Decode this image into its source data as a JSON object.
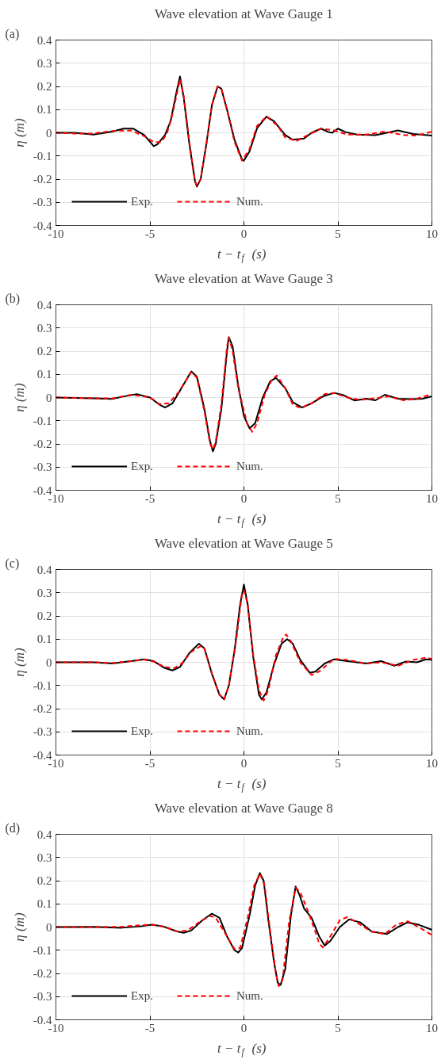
{
  "chart_data": [
    {
      "type": "line",
      "title": "Wave elevation at Wave Gauge 1",
      "xlabel": "t − t$_{f}$ (s)",
      "ylabel": "η (m)",
      "annotations": [
        "(a)"
      ],
      "xlim": [
        -10,
        10
      ],
      "xticks": [
        -10,
        -5,
        0,
        5,
        10
      ],
      "ylim": [
        -0.4,
        0.4
      ],
      "yticks": [
        -0.4,
        -0.3,
        -0.2,
        -0.1,
        0,
        0.1,
        0.2,
        0.3,
        0.4
      ],
      "grid": true,
      "legend": "bottom left",
      "series": [
        {
          "name": "Exp.",
          "color": "#000000",
          "line_style": "solid",
          "x": [
            -10,
            -9,
            -8,
            -7,
            -6.4,
            -5.9,
            -5.3,
            -4.8,
            -4.6,
            -4.2,
            -3.9,
            -3.6,
            -3.4,
            -3.2,
            -2.9,
            -2.6,
            -2.5,
            -2.3,
            -2.0,
            -1.7,
            -1.4,
            -1.2,
            -0.9,
            -0.5,
            -0.1,
            0,
            0.3,
            0.7,
            1.2,
            1.6,
            2.2,
            2.6,
            3.2,
            3.6,
            4.1,
            4.5,
            4.7,
            5.0,
            5.4,
            6,
            7,
            8.2,
            9,
            10
          ],
          "values": [
            0,
            0,
            -0.008,
            0.005,
            0.018,
            0.018,
            -0.01,
            -0.058,
            -0.05,
            -0.01,
            0.05,
            0.17,
            0.243,
            0.15,
            -0.05,
            -0.21,
            -0.232,
            -0.2,
            -0.05,
            0.12,
            0.2,
            0.19,
            0.1,
            -0.03,
            -0.115,
            -0.12,
            -0.08,
            0.02,
            0.07,
            0.05,
            -0.01,
            -0.03,
            -0.025,
            0,
            0.018,
            0.003,
            0,
            0.018,
            0.003,
            -0.008,
            -0.01,
            0.01,
            -0.005,
            -0.012
          ]
        },
        {
          "name": "Num.",
          "color": "#ff0000",
          "line_style": "dashed",
          "x": [
            -10,
            -9,
            -8,
            -7,
            -6,
            -5.3,
            -4.8,
            -4.4,
            -4.1,
            -3.8,
            -3.4,
            -3.2,
            -2.9,
            -2.6,
            -2.5,
            -2.3,
            -2.0,
            -1.7,
            -1.4,
            -1.2,
            -0.9,
            -0.5,
            -0.1,
            0.3,
            0.7,
            1.2,
            1.8,
            2.2,
            2.8,
            3.4,
            4.1,
            4.8,
            5.5,
            6.5,
            7.5,
            8.5,
            9.2,
            10
          ],
          "values": [
            0,
            -0.003,
            -0.003,
            0.008,
            0.01,
            -0.015,
            -0.04,
            -0.04,
            -0.005,
            0.08,
            0.23,
            0.16,
            -0.04,
            -0.21,
            -0.228,
            -0.2,
            -0.05,
            0.12,
            0.2,
            0.19,
            0.1,
            -0.04,
            -0.12,
            -0.07,
            0.03,
            0.07,
            0.03,
            -0.02,
            -0.035,
            -0.01,
            0.018,
            0.01,
            -0.008,
            -0.008,
            0.005,
            -0.01,
            -0.012,
            0.005
          ]
        }
      ]
    },
    {
      "type": "line",
      "title": "Wave elevation at Wave Gauge 3",
      "xlabel": "t − t$_{f}$ (s)",
      "ylabel": "η (m)",
      "annotations": [
        "(b)"
      ],
      "xlim": [
        -10,
        10
      ],
      "xticks": [
        -10,
        -5,
        0,
        5,
        10
      ],
      "ylim": [
        -0.4,
        0.4
      ],
      "yticks": [
        -0.4,
        -0.3,
        -0.2,
        -0.1,
        0,
        0.1,
        0.2,
        0.3,
        0.4
      ],
      "grid": true,
      "legend": "bottom left",
      "series": [
        {
          "name": "Exp.",
          "color": "#000000",
          "line_style": "solid",
          "x": [
            -10,
            -8,
            -7,
            -6.5,
            -5.7,
            -5,
            -4.5,
            -4.2,
            -3.8,
            -3.4,
            -2.8,
            -2.5,
            -2.1,
            -1.8,
            -1.65,
            -1.5,
            -1.2,
            -0.9,
            -0.8,
            -0.6,
            -0.3,
            0,
            0.3,
            0.6,
            1,
            1.4,
            1.7,
            2.2,
            2.6,
            3.1,
            3.6,
            4.2,
            4.8,
            5.3,
            5.9,
            6.5,
            7,
            7.5,
            8.2,
            9,
            9.5,
            10
          ],
          "values": [
            0,
            -0.003,
            -0.006,
            0.003,
            0.015,
            0,
            -0.03,
            -0.043,
            -0.025,
            0.03,
            0.113,
            0.09,
            -0.05,
            -0.19,
            -0.232,
            -0.2,
            -0.05,
            0.2,
            0.26,
            0.22,
            0.05,
            -0.08,
            -0.133,
            -0.11,
            0,
            0.07,
            0.085,
            0.04,
            -0.02,
            -0.043,
            -0.025,
            0.005,
            0.02,
            0.01,
            -0.013,
            -0.005,
            -0.012,
            0.012,
            -0.005,
            -0.007,
            -0.005,
            0.005
          ]
        },
        {
          "name": "Num.",
          "color": "#ff0000",
          "line_style": "dashed",
          "x": [
            -10,
            -8,
            -7,
            -6,
            -5,
            -4.5,
            -4,
            -3.5,
            -2.8,
            -2.5,
            -2.1,
            -1.8,
            -1.65,
            -1.5,
            -1.2,
            -0.9,
            -0.8,
            -0.6,
            -0.3,
            0.2,
            0.45,
            0.7,
            1.1,
            1.5,
            1.75,
            2.2,
            2.6,
            3,
            3.6,
            4.3,
            4.8,
            5.5,
            6.2,
            7,
            7.7,
            8.5,
            9.2,
            10
          ],
          "values": [
            0,
            -0.003,
            -0.004,
            0.012,
            0.001,
            -0.028,
            -0.025,
            0.02,
            0.11,
            0.085,
            -0.06,
            -0.2,
            -0.225,
            -0.19,
            -0.03,
            0.22,
            0.26,
            0.2,
            0.04,
            -0.12,
            -0.148,
            -0.11,
            0.01,
            0.08,
            0.095,
            0.04,
            -0.03,
            -0.045,
            -0.025,
            0.015,
            0.02,
            0,
            -0.01,
            -0.003,
            0.005,
            -0.012,
            -0.005,
            0.015
          ]
        }
      ]
    },
    {
      "type": "line",
      "title": "Wave elevation at Wave Gauge 5",
      "xlabel": "t − t$_{f}$ (s)",
      "ylabel": "η (m)",
      "annotations": [
        "(c)"
      ],
      "xlim": [
        -10,
        10
      ],
      "xticks": [
        -10,
        -5,
        0,
        5,
        10
      ],
      "ylim": [
        -0.4,
        0.4
      ],
      "yticks": [
        -0.4,
        -0.3,
        -0.2,
        -0.1,
        0,
        0.1,
        0.2,
        0.3,
        0.4
      ],
      "grid": true,
      "legend": "bottom left",
      "series": [
        {
          "name": "Exp.",
          "color": "#000000",
          "line_style": "solid",
          "x": [
            -10,
            -8,
            -7,
            -6,
            -5.3,
            -4.8,
            -4.2,
            -3.8,
            -3.4,
            -2.9,
            -2.4,
            -2.1,
            -1.7,
            -1.3,
            -1.05,
            -0.8,
            -0.5,
            -0.2,
            0,
            0.2,
            0.5,
            0.8,
            0.95,
            1.2,
            1.6,
            2,
            2.3,
            2.6,
            3,
            3.5,
            3.8,
            4.3,
            4.8,
            5.5,
            6.5,
            7.3,
            8,
            8.6,
            9.2,
            9.7,
            10
          ],
          "values": [
            0,
            0,
            -0.005,
            0.005,
            0.013,
            0.005,
            -0.025,
            -0.035,
            -0.02,
            0.04,
            0.08,
            0.06,
            -0.05,
            -0.14,
            -0.16,
            -0.1,
            0.05,
            0.25,
            0.335,
            0.25,
            0.02,
            -0.14,
            -0.16,
            -0.13,
            -0.01,
            0.08,
            0.1,
            0.08,
            0.01,
            -0.045,
            -0.04,
            -0.005,
            0.013,
            0.005,
            -0.005,
            0.005,
            -0.015,
            0.003,
            0,
            0.013,
            0.01
          ]
        },
        {
          "name": "Num.",
          "color": "#ff0000",
          "line_style": "dashed",
          "x": [
            -10,
            -8,
            -7,
            -6,
            -5.3,
            -4.8,
            -4.2,
            -3.7,
            -3.3,
            -2.8,
            -2.3,
            -2.1,
            -1.7,
            -1.3,
            -1.05,
            -0.8,
            -0.4,
            -0.1,
            0,
            0.2,
            0.5,
            0.8,
            1.05,
            1.3,
            1.7,
            2.1,
            2.25,
            2.5,
            3,
            3.6,
            4,
            4.8,
            5.5,
            6.5,
            7.3,
            8.2,
            9,
            9.7,
            10
          ],
          "values": [
            0,
            0,
            -0.003,
            0.005,
            0.012,
            0.003,
            -0.02,
            -0.025,
            -0.005,
            0.045,
            0.07,
            0.06,
            -0.05,
            -0.14,
            -0.16,
            -0.1,
            0.1,
            0.3,
            0.31,
            0.25,
            0.03,
            -0.12,
            -0.165,
            -0.12,
            0.03,
            0.11,
            0.12,
            0.09,
            0,
            -0.055,
            -0.04,
            0.015,
            0.01,
            -0.005,
            0,
            -0.015,
            0.01,
            0.02,
            0.015
          ]
        }
      ]
    },
    {
      "type": "line",
      "title": "Wave elevation at Wave Gauge 8",
      "xlabel": "t − t$_{f}$ (s)",
      "ylabel": "η (m)",
      "annotations": [
        "(d)"
      ],
      "xlim": [
        -10,
        10
      ],
      "xticks": [
        -10,
        -5,
        0,
        5,
        10
      ],
      "ylim": [
        -0.4,
        0.4
      ],
      "yticks": [
        -0.4,
        -0.3,
        -0.2,
        -0.1,
        0,
        0.1,
        0.2,
        0.3,
        0.4
      ],
      "grid": true,
      "legend": "bottom left",
      "series": [
        {
          "name": "Exp.",
          "color": "#000000",
          "line_style": "solid",
          "x": [
            -10,
            -8,
            -6.5,
            -5.5,
            -4.9,
            -4.3,
            -3.6,
            -3.2,
            -2.8,
            -2.2,
            -1.7,
            -1.3,
            -0.9,
            -0.5,
            -0.3,
            -0.1,
            0.3,
            0.6,
            0.85,
            1.05,
            1.3,
            1.6,
            1.8,
            1.95,
            2.2,
            2.5,
            2.75,
            2.95,
            3.2,
            3.6,
            4,
            4.3,
            4.6,
            5.1,
            5.6,
            6.2,
            6.8,
            7.6,
            8.2,
            8.7,
            9.3,
            10
          ],
          "values": [
            0,
            0.001,
            -0.003,
            0.003,
            0.01,
            0.003,
            -0.018,
            -0.025,
            -0.015,
            0.03,
            0.058,
            0.04,
            -0.04,
            -0.1,
            -0.11,
            -0.09,
            0.05,
            0.18,
            0.233,
            0.2,
            0.03,
            -0.15,
            -0.24,
            -0.25,
            -0.18,
            0.05,
            0.175,
            0.14,
            0.08,
            0.04,
            -0.04,
            -0.08,
            -0.06,
            0,
            0.033,
            0.02,
            -0.02,
            -0.03,
            0,
            0.02,
            0.01,
            -0.012
          ]
        },
        {
          "name": "Num.",
          "color": "#ff0000",
          "line_style": "dashed",
          "x": [
            -10,
            -8,
            -6.5,
            -5.5,
            -4.8,
            -4.2,
            -3.5,
            -3,
            -2.4,
            -1.8,
            -1.5,
            -0.9,
            -0.5,
            -0.2,
            0.2,
            0.55,
            0.85,
            1.1,
            1.4,
            1.7,
            1.85,
            2.05,
            2.4,
            2.75,
            3,
            3.4,
            3.8,
            4,
            4.2,
            4.6,
            5.1,
            5.5,
            6,
            6.8,
            7.5,
            8.1,
            8.7,
            9.3,
            10
          ],
          "values": [
            0,
            0,
            0.001,
            0.008,
            0.01,
            0,
            -0.02,
            -0.015,
            0.02,
            0.048,
            0.04,
            -0.04,
            -0.095,
            -0.09,
            0.04,
            0.18,
            0.23,
            0.18,
            -0.02,
            -0.2,
            -0.255,
            -0.23,
            0.02,
            0.17,
            0.15,
            0.07,
            -0.02,
            -0.07,
            -0.088,
            -0.04,
            0.03,
            0.043,
            0.02,
            -0.02,
            -0.03,
            0.01,
            0.025,
            0,
            -0.035
          ]
        }
      ]
    }
  ]
}
